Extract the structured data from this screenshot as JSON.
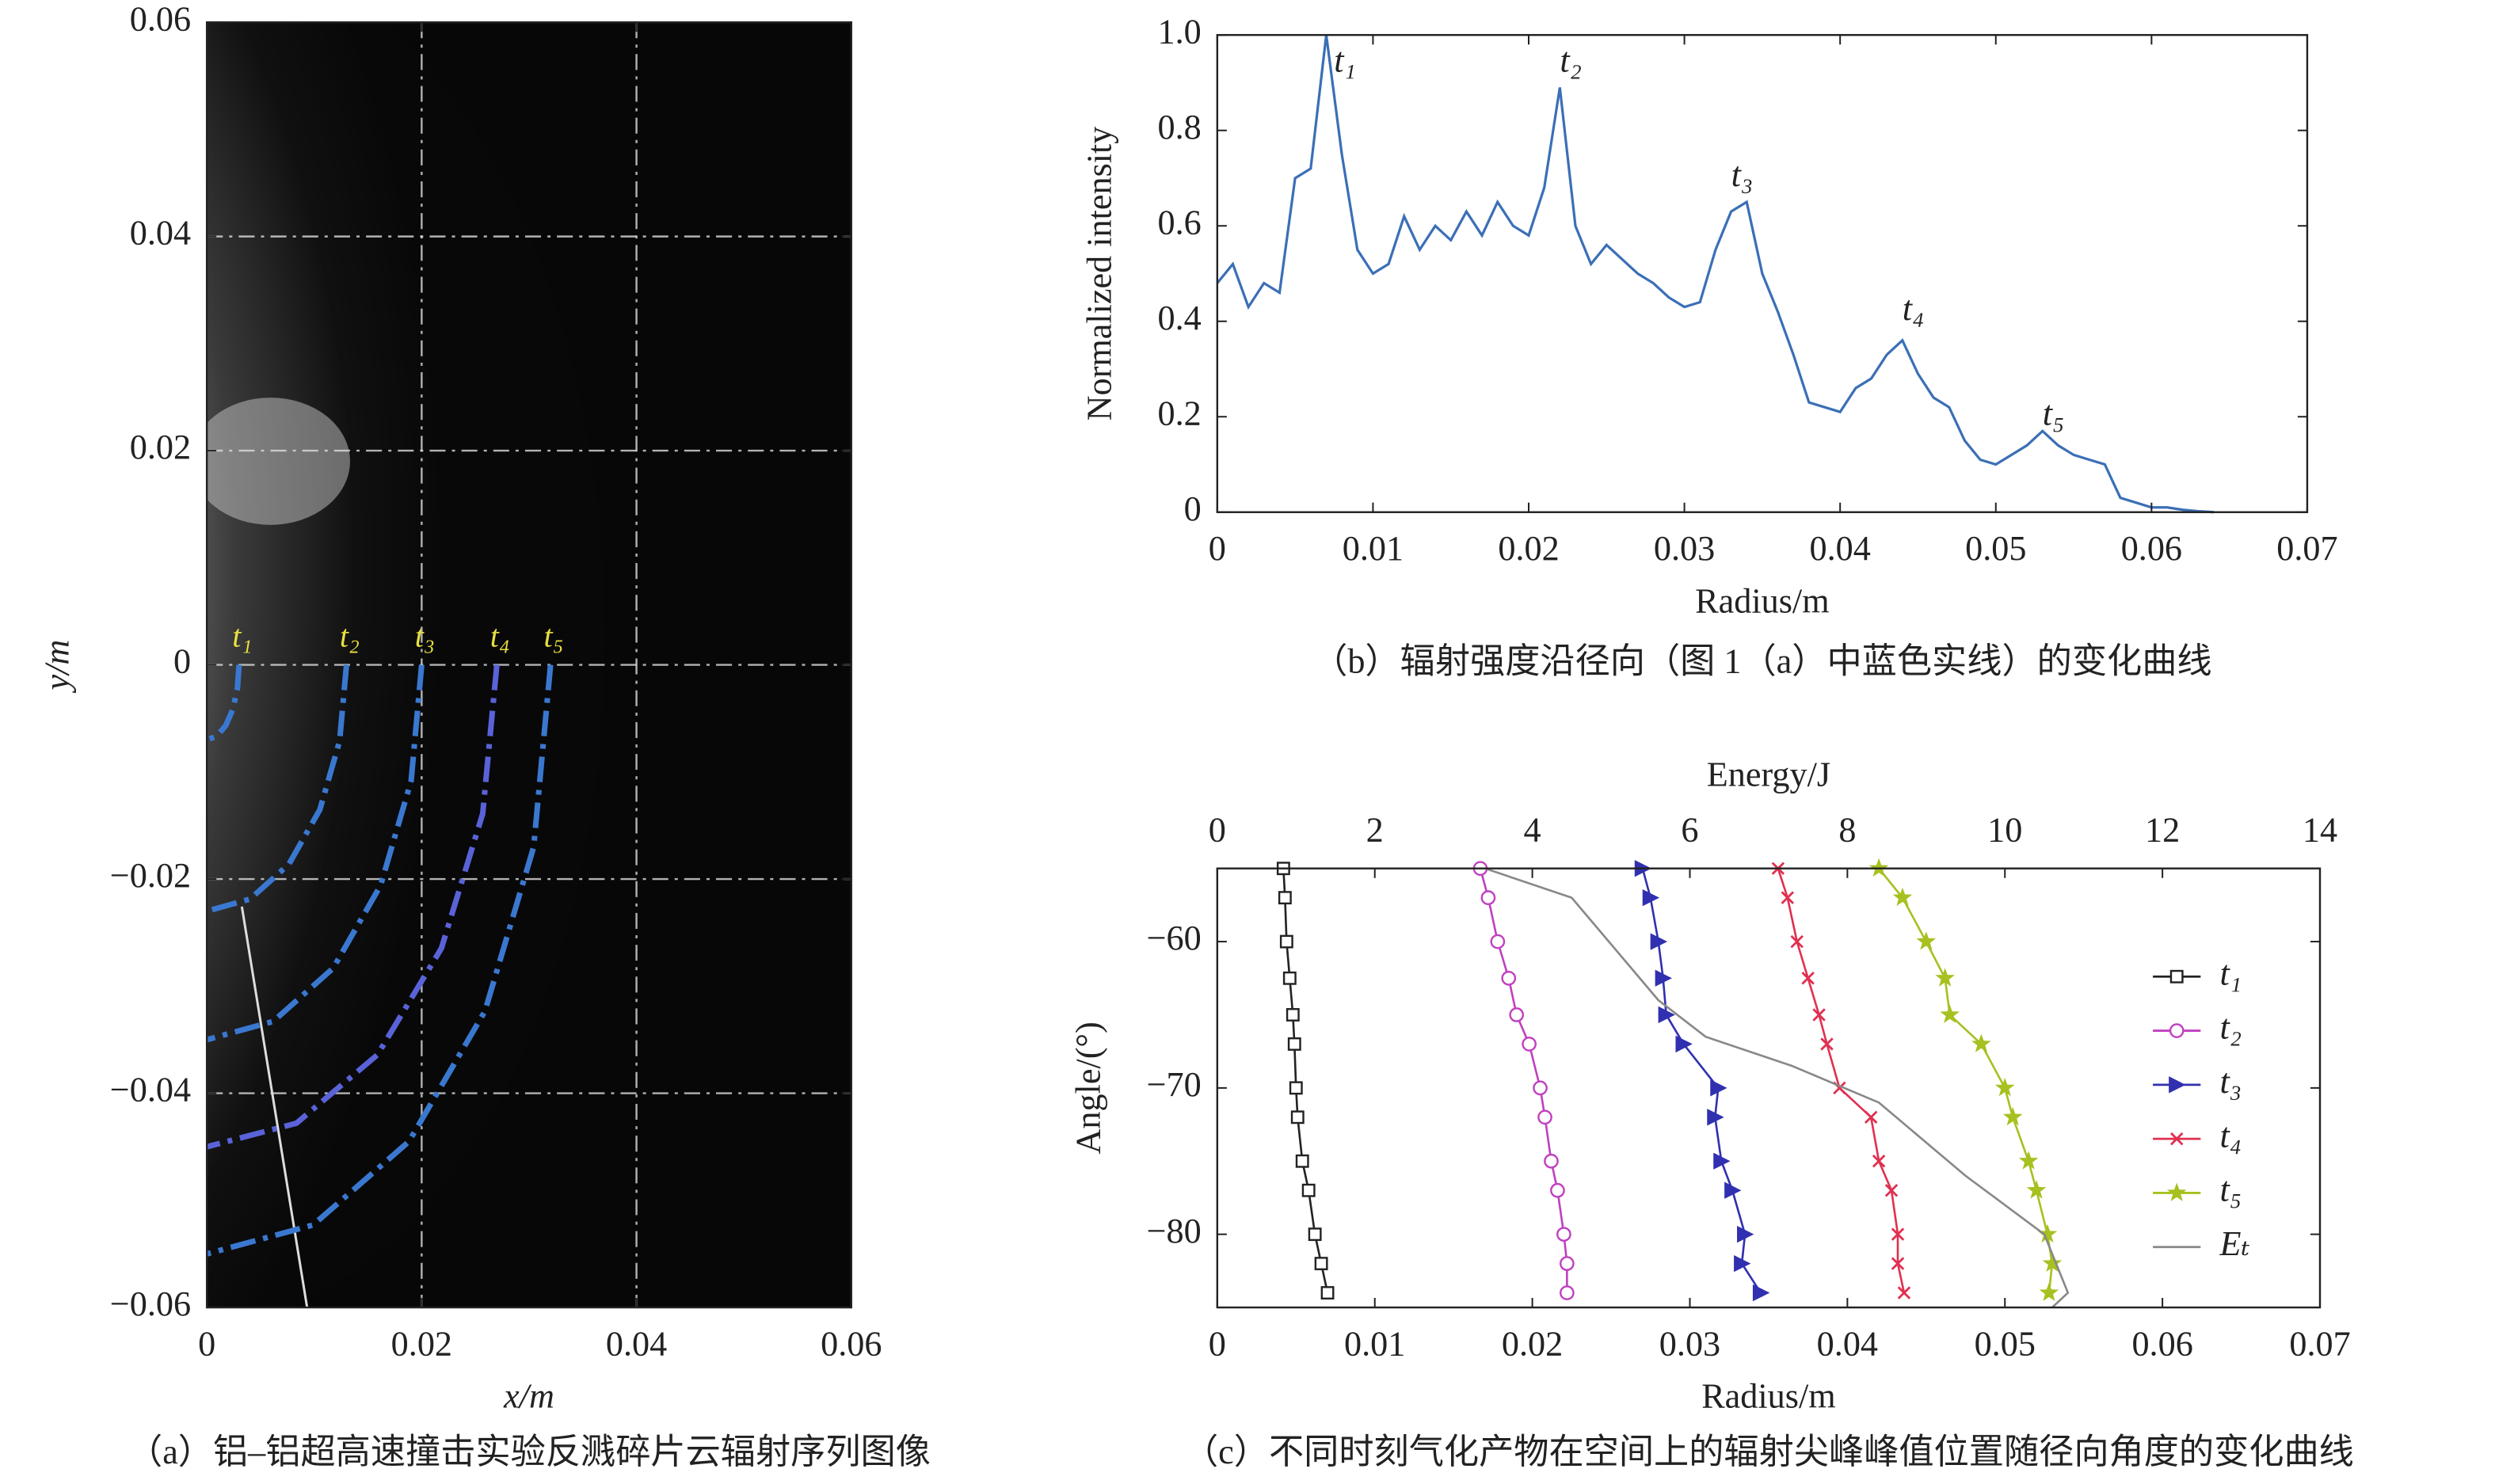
{
  "chart_data": [
    {
      "type": "image",
      "caption": "（a）铝–铝超高速撞击实验反溅碎片云辐射序列图像",
      "xlabel": "x/m",
      "ylabel": "y/m",
      "xlim": [
        0,
        0.06
      ],
      "ylim": [
        -0.06,
        0.06
      ],
      "xticks": [
        0,
        0.02,
        0.04,
        0.06
      ],
      "yticks": [
        {
          "value": -0.06,
          "label": "−0.06"
        },
        {
          "value": -0.04,
          "label": "−0.04"
        },
        {
          "value": -0.02,
          "label": "−0.02"
        },
        0,
        0.02,
        0.04,
        0.06
      ],
      "grid": true,
      "series": [
        {
          "name": "t₁",
          "color": "#3a78d0",
          "x": [
            0.003,
            0.00285,
            0.00243,
            0.00176,
            0.00093,
            0
          ],
          "values": [
            0,
            -0.00216,
            -0.00412,
            -0.00566,
            -0.00666,
            -0.007
          ]
        },
        {
          "name": "t₂",
          "color": "#3a78d0",
          "x": [
            0.013,
            0.01236,
            0.01052,
            0.00764,
            0.00402,
            0
          ],
          "values": [
            0,
            -0.00711,
            -0.01352,
            -0.01861,
            -0.02187,
            -0.023
          ]
        },
        {
          "name": "t₃",
          "color": "#3a78d0",
          "x": [
            0.02,
            0.01902,
            0.01618,
            0.01176,
            0.00618,
            0
          ],
          "values": [
            0,
            -0.01082,
            -0.02058,
            -0.02832,
            -0.03329,
            -0.035
          ]
        },
        {
          "name": "t₄",
          "color": "#5a62d8",
          "x": [
            0.027,
            0.02568,
            0.02184,
            0.01588,
            0.00834,
            0
          ],
          "values": [
            0,
            -0.01391,
            -0.02646,
            -0.03641,
            -0.0428,
            -0.045
          ]
        },
        {
          "name": "t₅",
          "color": "#3a78d0",
          "x": [
            0.032,
            0.03043,
            0.02589,
            0.01882,
            0.00989,
            0
          ],
          "values": [
            0,
            -0.017,
            -0.03234,
            -0.0445,
            -0.0523,
            -0.055
          ]
        }
      ]
    },
    {
      "type": "line",
      "caption": "（b）辐射强度沿径向（图 1（a）中蓝色实线）的变化曲线",
      "xlabel": "Radius/m",
      "ylabel": "Normalized intensity",
      "xlim": [
        0,
        0.07
      ],
      "ylim": [
        0,
        1
      ],
      "xticks": [
        0,
        0.01,
        0.02,
        0.03,
        0.04,
        0.05,
        0.06,
        0.07
      ],
      "yticks": [
        0,
        0.2,
        0.4,
        0.6,
        0.8,
        {
          "value": 1,
          "label": "1.0"
        }
      ],
      "series": [
        {
          "color": "#3b6fb6",
          "x": [
            0,
            0.001,
            0.002,
            0.003,
            0.004,
            0.005,
            0.006,
            0.007,
            0.008,
            0.009,
            0.01,
            0.011,
            0.012,
            0.013,
            0.014,
            0.015,
            0.016,
            0.017,
            0.018,
            0.019,
            0.02,
            0.021,
            0.022,
            0.023,
            0.024,
            0.025,
            0.026,
            0.027,
            0.028,
            0.029,
            0.03,
            0.031,
            0.032,
            0.033,
            0.034,
            0.035,
            0.036,
            0.037,
            0.038,
            0.039,
            0.04,
            0.041,
            0.042,
            0.043,
            0.044,
            0.045,
            0.046,
            0.047,
            0.048,
            0.049,
            0.05,
            0.051,
            0.052,
            0.053,
            0.054,
            0.055,
            0.056,
            0.057,
            0.058,
            0.059,
            0.06,
            0.061,
            0.062,
            0.063,
            0.064
          ],
          "values": [
            0.48,
            0.52,
            0.43,
            0.48,
            0.46,
            0.7,
            0.72,
            1.0,
            0.75,
            0.55,
            0.5,
            0.52,
            0.62,
            0.55,
            0.6,
            0.57,
            0.63,
            0.58,
            0.65,
            0.6,
            0.58,
            0.68,
            0.89,
            0.6,
            0.52,
            0.56,
            0.53,
            0.5,
            0.48,
            0.45,
            0.43,
            0.44,
            0.55,
            0.63,
            0.65,
            0.5,
            0.42,
            0.33,
            0.23,
            0.22,
            0.21,
            0.26,
            0.28,
            0.33,
            0.36,
            0.29,
            0.24,
            0.22,
            0.15,
            0.11,
            0.1,
            0.12,
            0.14,
            0.17,
            0.14,
            0.12,
            0.11,
            0.1,
            0.03,
            0.02,
            0.01,
            0.01,
            0.005,
            0.002,
            0
          ]
        }
      ],
      "annotations": [
        {
          "text": "t₁",
          "x": 0.0075,
          "y": 0.94
        },
        {
          "text": "t₂",
          "x": 0.022,
          "y": 0.94
        },
        {
          "text": "t₃",
          "x": 0.033,
          "y": 0.7
        },
        {
          "text": "t₄",
          "x": 0.044,
          "y": 0.42
        },
        {
          "text": "t₅",
          "x": 0.053,
          "y": 0.2
        }
      ]
    },
    {
      "type": "line",
      "caption": "（c）不同时刻气化产物在空间上的辐射尖峰峰值位置随径向角度的变化曲线",
      "xlabel": "Radius/m",
      "ylabel": "Angle/(°)",
      "x2label": "Energy/J",
      "xlim": [
        0,
        0.07
      ],
      "ylim": [
        -85,
        -55
      ],
      "x2lim": [
        0,
        14
      ],
      "xticks": [
        0,
        0.01,
        0.02,
        0.03,
        0.04,
        0.05,
        0.06,
        0.07
      ],
      "x2ticks": [
        0,
        2,
        4,
        6,
        8,
        10,
        12,
        14
      ],
      "yticks": [
        {
          "value": -80,
          "label": "−80"
        },
        {
          "value": -70,
          "label": "−70"
        },
        {
          "value": -60,
          "label": "−60"
        }
      ],
      "legend": "right",
      "series": [
        {
          "name": "t₁",
          "color": "#222222",
          "marker": "square",
          "x": [
            0.0042,
            0.0043,
            0.0044,
            0.0046,
            0.0048,
            0.0049,
            0.005,
            0.0051,
            0.0054,
            0.0058,
            0.0062,
            0.0066,
            0.007
          ],
          "values": [
            -55,
            -57,
            -60,
            -62.5,
            -65,
            -67,
            -70,
            -72,
            -75,
            -77,
            -80,
            -82,
            -84
          ]
        },
        {
          "name": "t₂",
          "color": "#c040c0",
          "marker": "circle",
          "x": [
            0.0167,
            0.0172,
            0.0178,
            0.0185,
            0.019,
            0.0198,
            0.0205,
            0.0208,
            0.0212,
            0.0216,
            0.022,
            0.0222,
            0.0222
          ],
          "values": [
            -55,
            -57,
            -60,
            -62.5,
            -65,
            -67,
            -70,
            -72,
            -75,
            -77,
            -80,
            -82,
            -84
          ]
        },
        {
          "name": "t₃",
          "color": "#3030b0",
          "marker": "triangle",
          "x": [
            0.027,
            0.0275,
            0.028,
            0.0283,
            0.0285,
            0.0296,
            0.0318,
            0.0316,
            0.032,
            0.0327,
            0.0335,
            0.0333,
            0.0345
          ],
          "values": [
            -55,
            -57,
            -60,
            -62.5,
            -65,
            -67,
            -70,
            -72,
            -75,
            -77,
            -80,
            -82,
            -84
          ]
        },
        {
          "name": "t₄",
          "color": "#e03050",
          "marker": "x",
          "x": [
            0.0356,
            0.0362,
            0.0368,
            0.0375,
            0.0382,
            0.0387,
            0.0395,
            0.0415,
            0.042,
            0.0428,
            0.0432,
            0.0432,
            0.0436
          ],
          "values": [
            -55,
            -57,
            -60,
            -62.5,
            -65,
            -67,
            -70,
            -72,
            -75,
            -77,
            -80,
            -82,
            -84
          ]
        },
        {
          "name": "t₅",
          "color": "#a8c020",
          "marker": "star",
          "x": [
            0.042,
            0.0435,
            0.045,
            0.0462,
            0.0465,
            0.0485,
            0.05,
            0.0505,
            0.0515,
            0.052,
            0.0527,
            0.053,
            0.0528
          ],
          "values": [
            -55,
            -57,
            -60,
            -62.5,
            -65,
            -67,
            -70,
            -72,
            -75,
            -77,
            -80,
            -82,
            -84
          ]
        },
        {
          "name": "Eₜ",
          "color": "#888888",
          "axis": "x2",
          "x": [
            3.4,
            4.5,
            5.6,
            6.2,
            7.3,
            8.4,
            9.5,
            10.5,
            10.8,
            10.6
          ],
          "values": [
            -55,
            -57,
            -64,
            -66.5,
            -68.5,
            -71,
            -76,
            -80,
            -84,
            -85
          ]
        }
      ]
    }
  ]
}
